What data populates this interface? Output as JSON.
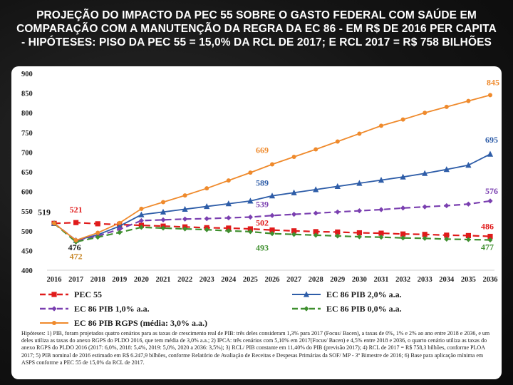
{
  "slide": {
    "title": "PROJEÇÃO DO IMPACTO DA PEC 55 SOBRE O GASTO FEDERAL COM SAÚDE EM COMPARAÇÃO COM A MANUTENÇÃO DA REGRA DA EC 86 - EM R$ DE 2016 PER CAPITA - HIPÓTESES: PISO DA PEC 55 = 15,0% DA RCL DE 2017; E RCL 2017 = R$ 758 BILHÕES",
    "footnote": "Hipóteses: 1) PIB, foram projetados quatro cenários para as taxas de crescimento real de PIB: três deles consideram 1,3% para 2017 (Focus/ Bacen), a taxas de 0%, 1% e 2% ao ano entre 2018 e 2036, e um deles utiliza as taxas do anexo RGPS do PLDO 2016, que tem média de 3,0% a.a.; 2) IPCA: três cenários com 5,10% em 2017(Focus/ Bacen) e 4,5% entre 2018 e 2036, o quarto cenário utiliza as taxas do anexo RGPS do PLDO 2016 (2017: 6,0%, 2018: 5,4%, 2019: 5,0%, 2020 a 2036: 3,5%); 3) RCL/ PIB constante em 11,40% do PIB (previsão 2017); 4) RCL de 2017 = R$ 758,3 bilhões, conforme PLOA 2017; 5) PIB nominal de 2016 estimado em R$ 6.247,9 bilhões, conforme Relatório de Avaliação de Receitas e Despesas Primárias da SOF/ MP - 3º Bimestre de 2016; 6) Base para aplicação mínima em ASPS conforme a PEC 55 de 15,0% da RCL de 2017."
  },
  "chart_data": {
    "type": "line",
    "x": [
      "2016",
      "2017",
      "2018",
      "2019",
      "2020",
      "2021",
      "2022",
      "2023",
      "2024",
      "2025",
      "2026",
      "2027",
      "2028",
      "2029",
      "2030",
      "2031",
      "2032",
      "2033",
      "2034",
      "2035",
      "2036"
    ],
    "ylim": [
      400,
      900
    ],
    "yticks": [
      "400",
      "450",
      "500",
      "550",
      "600",
      "650",
      "700",
      "750",
      "800",
      "850",
      "900"
    ],
    "grid": false,
    "legend_position": "bottom",
    "series": [
      {
        "name": "PEC 55",
        "color": "#e01b1b",
        "dash": "dashed",
        "marker": "square",
        "values": [
          519,
          521,
          518,
          516,
          514,
          512,
          510,
          508,
          507,
          505,
          502,
          500,
          498,
          497,
          495,
          494,
          492,
          491,
          489,
          488,
          486
        ]
      },
      {
        "name": "EC 86 PIB 2,0% a.a.",
        "color": "#2e5da8",
        "dash": "solid",
        "marker": "triangle",
        "values": [
          519,
          476,
          490,
          512,
          541,
          548,
          555,
          562,
          569,
          576,
          589,
          597,
          605,
          613,
          621,
          629,
          637,
          646,
          656,
          667,
          695
        ]
      },
      {
        "name": "EC 86 PIB 1,0% a.a.",
        "color": "#7a3fb0",
        "dash": "dashed",
        "marker": "diamond",
        "values": [
          519,
          476,
          487,
          504,
          526,
          528,
          530,
          531,
          533,
          535,
          539,
          542,
          545,
          548,
          551,
          554,
          558,
          561,
          564,
          568,
          576
        ]
      },
      {
        "name": "EC 86 PIB 0,0% a.a.",
        "color": "#3f8f2f",
        "dash": "dashed",
        "marker": "diamond",
        "values": [
          519,
          472,
          484,
          496,
          509,
          507,
          505,
          503,
          500,
          498,
          493,
          491,
          489,
          487,
          485,
          484,
          482,
          481,
          479,
          478,
          477
        ]
      },
      {
        "name": "EC 86 PIB RGPS (média: 3,0% a.a.)",
        "color": "#ef8a2c",
        "dash": "solid",
        "marker": "circle",
        "values": [
          519,
          476,
          495,
          520,
          556,
          573,
          590,
          608,
          628,
          648,
          669,
          688,
          707,
          727,
          747,
          767,
          783,
          800,
          815,
          830,
          845
        ]
      }
    ],
    "data_labels": [
      {
        "text": "519",
        "x": "2016",
        "y": 519,
        "color": "#1a1a1a"
      },
      {
        "text": "521",
        "x": "2017",
        "y": 521,
        "color": "#e01b1b"
      },
      {
        "text": "476",
        "x": "2017",
        "y": 476,
        "color": "#1a1a1a"
      },
      {
        "text": "472",
        "x": "2017",
        "y": 472,
        "color": "#c8882a"
      },
      {
        "text": "669",
        "x": "2026",
        "y": 669,
        "color": "#ef8a2c"
      },
      {
        "text": "589",
        "x": "2026",
        "y": 589,
        "color": "#2e5da8"
      },
      {
        "text": "539",
        "x": "2026",
        "y": 539,
        "color": "#7a3fb0"
      },
      {
        "text": "502",
        "x": "2026",
        "y": 502,
        "color": "#e01b1b"
      },
      {
        "text": "493",
        "x": "2026",
        "y": 493,
        "color": "#3f8f2f"
      },
      {
        "text": "845",
        "x": "2036",
        "y": 845,
        "color": "#ef8a2c"
      },
      {
        "text": "695",
        "x": "2036",
        "y": 695,
        "color": "#2e5da8"
      },
      {
        "text": "576",
        "x": "2036",
        "y": 576,
        "color": "#7a3fb0"
      },
      {
        "text": "486",
        "x": "2036",
        "y": 486,
        "color": "#e01b1b"
      },
      {
        "text": "477",
        "x": "2036",
        "y": 477,
        "color": "#3f8f2f"
      }
    ]
  }
}
